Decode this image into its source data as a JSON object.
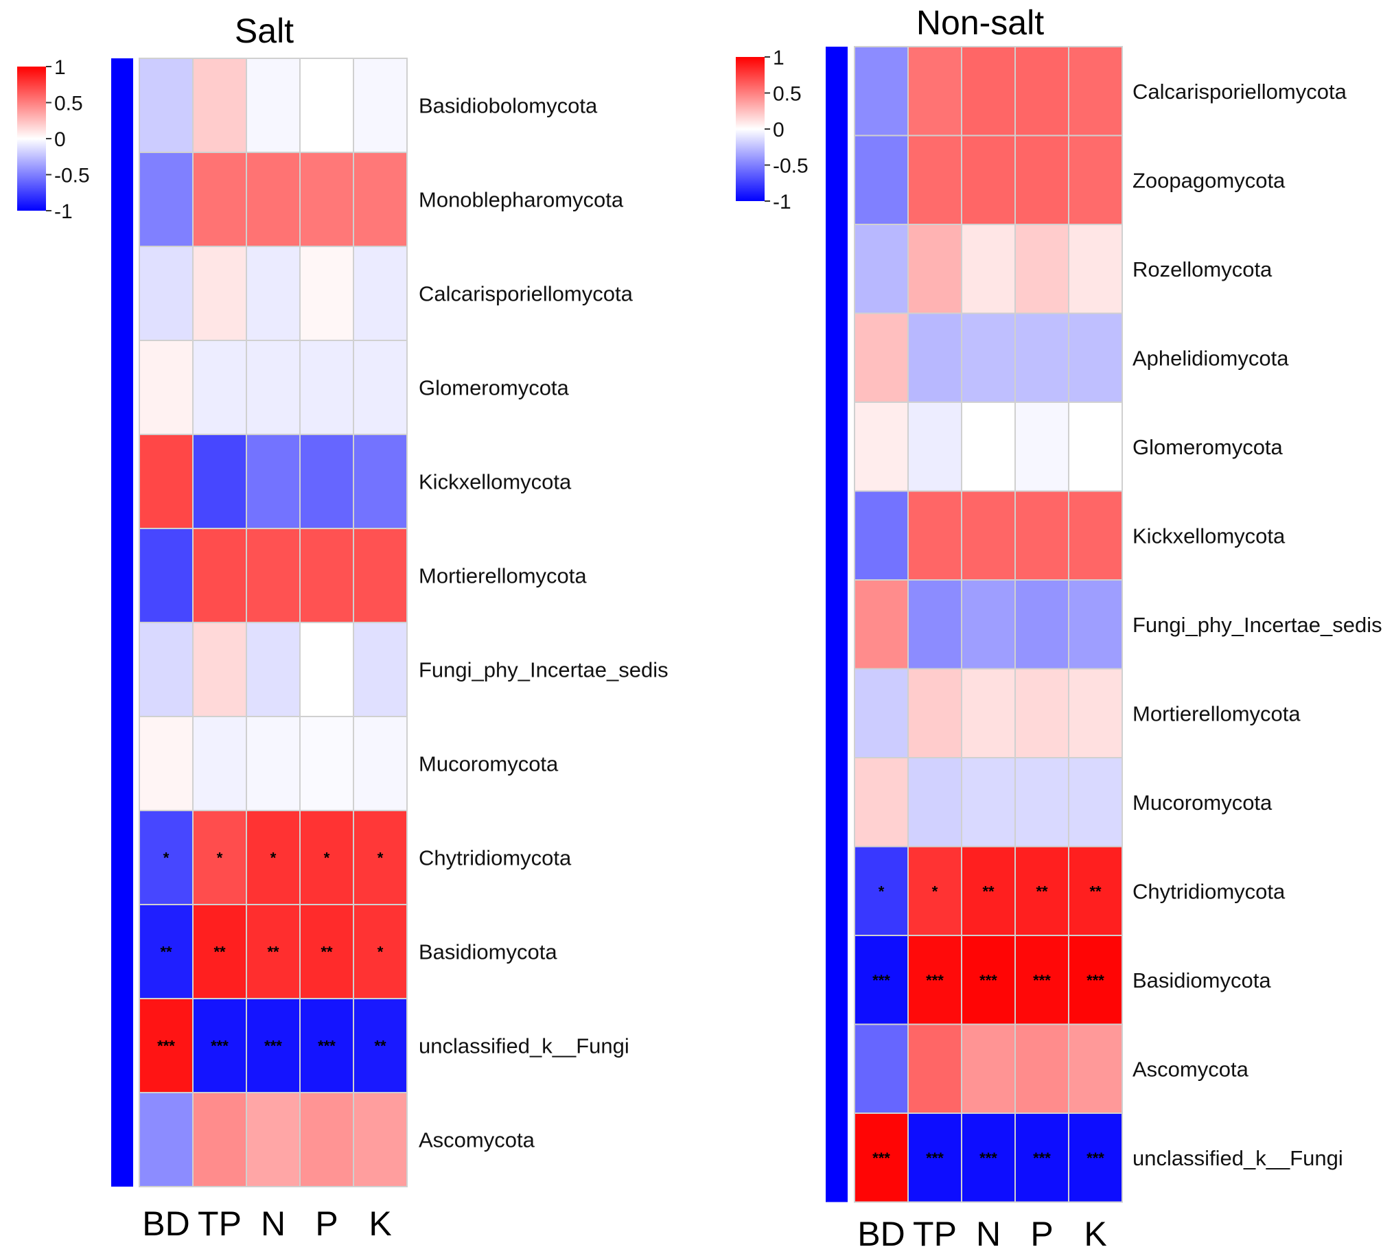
{
  "chart_data": [
    {
      "type": "heatmap",
      "title": "Salt",
      "columns": [
        "BD",
        "TP",
        "N",
        "P",
        "K"
      ],
      "rows": [
        "Basidiobolomycota",
        "Monoblepharomycota",
        "Calcarisporiellomycota",
        "Glomeromycota",
        "Kickxellomycota",
        "Mortierellomycota",
        "Fungi_phy_Incertae_sedis",
        "Mucoromycota",
        "Chytridiomycota",
        "Basidiomycota",
        "unclassified_k__Fungi",
        "Ascomycota"
      ],
      "values": [
        [
          -0.2,
          0.2,
          -0.03,
          0.0,
          -0.03
        ],
        [
          -0.5,
          0.55,
          0.55,
          0.53,
          0.53
        ],
        [
          -0.12,
          0.1,
          -0.08,
          0.03,
          -0.08
        ],
        [
          0.05,
          -0.07,
          -0.07,
          -0.07,
          -0.07
        ],
        [
          0.72,
          -0.72,
          -0.55,
          -0.6,
          -0.55
        ],
        [
          -0.72,
          0.7,
          0.68,
          0.68,
          0.68
        ],
        [
          -0.15,
          0.15,
          -0.12,
          0.0,
          -0.12
        ],
        [
          0.04,
          -0.05,
          -0.03,
          -0.02,
          -0.03
        ],
        [
          -0.72,
          0.7,
          0.8,
          0.8,
          0.78
        ],
        [
          -0.88,
          0.88,
          0.82,
          0.83,
          0.8
        ],
        [
          0.92,
          -0.92,
          -0.92,
          -0.92,
          -0.9
        ],
        [
          -0.45,
          0.45,
          0.35,
          0.42,
          0.38
        ]
      ],
      "significance": [
        [
          "",
          "",
          "",
          "",
          ""
        ],
        [
          "",
          "",
          "",
          "",
          ""
        ],
        [
          "",
          "",
          "",
          "",
          ""
        ],
        [
          "",
          "",
          "",
          "",
          ""
        ],
        [
          "",
          "",
          "",
          "",
          ""
        ],
        [
          "",
          "",
          "",
          "",
          ""
        ],
        [
          "",
          "",
          "",
          "",
          ""
        ],
        [
          "",
          "",
          "",
          "",
          ""
        ],
        [
          "*",
          "*",
          "*",
          "*",
          "*"
        ],
        [
          "**",
          "**",
          "**",
          "**",
          "*"
        ],
        [
          "***",
          "***",
          "***",
          "***",
          "**"
        ],
        [
          "",
          "",
          "",
          "",
          ""
        ]
      ],
      "colorbar": {
        "ticks": [
          "1",
          "0.5",
          "0",
          "-0.5",
          "-1"
        ],
        "range": [
          -1,
          1
        ]
      },
      "colors": {
        "low": "#0000ff",
        "mid": "#ffffff",
        "high": "#ff0000"
      }
    },
    {
      "type": "heatmap",
      "title": "Non-salt",
      "columns": [
        "BD",
        "TP",
        "N",
        "P",
        "K"
      ],
      "rows": [
        "Calcarisporiellomycota",
        "Zoopagomycota",
        "Rozellomycota",
        "Aphelidiomycota",
        "Glomeromycota",
        "Kickxellomycota",
        "Fungi_phy_Incertae_sedis",
        "Mortierellomycota",
        "Mucoromycota",
        "Chytridiomycota",
        "Basidiomycota",
        "Ascomycota",
        "unclassified_k__Fungi"
      ],
      "values": [
        [
          -0.45,
          0.55,
          0.6,
          0.6,
          0.58
        ],
        [
          -0.5,
          0.58,
          0.6,
          0.6,
          0.58
        ],
        [
          -0.28,
          0.3,
          0.1,
          0.2,
          0.1
        ],
        [
          0.25,
          -0.28,
          -0.25,
          -0.25,
          -0.25
        ],
        [
          0.07,
          -0.07,
          0.0,
          -0.03,
          0.0
        ],
        [
          -0.55,
          0.6,
          0.6,
          0.6,
          0.6
        ],
        [
          0.45,
          -0.45,
          -0.38,
          -0.42,
          -0.38
        ],
        [
          -0.2,
          0.2,
          0.12,
          0.15,
          0.12
        ],
        [
          0.18,
          -0.18,
          -0.15,
          -0.15,
          -0.15
        ],
        [
          -0.78,
          0.8,
          0.88,
          0.88,
          0.88
        ],
        [
          -0.95,
          0.96,
          0.98,
          0.97,
          0.98
        ],
        [
          -0.6,
          0.6,
          0.42,
          0.45,
          0.4
        ],
        [
          0.98,
          -0.95,
          -0.95,
          -0.95,
          -0.95
        ]
      ],
      "significance": [
        [
          "",
          "",
          "",
          "",
          ""
        ],
        [
          "",
          "",
          "",
          "",
          ""
        ],
        [
          "",
          "",
          "",
          "",
          ""
        ],
        [
          "",
          "",
          "",
          "",
          ""
        ],
        [
          "",
          "",
          "",
          "",
          ""
        ],
        [
          "",
          "",
          "",
          "",
          ""
        ],
        [
          "",
          "",
          "",
          "",
          ""
        ],
        [
          "",
          "",
          "",
          "",
          ""
        ],
        [
          "",
          "",
          "",
          "",
          ""
        ],
        [
          "*",
          "*",
          "**",
          "**",
          "**"
        ],
        [
          "***",
          "***",
          "***",
          "***",
          "***"
        ],
        [
          "",
          "",
          "",
          "",
          ""
        ],
        [
          "***",
          "***",
          "***",
          "***",
          "***"
        ]
      ],
      "colorbar": {
        "ticks": [
          "1",
          "0.5",
          "0",
          "-0.5",
          "-1"
        ],
        "range": [
          -1,
          1
        ]
      },
      "colors": {
        "low": "#0000ff",
        "mid": "#ffffff",
        "high": "#ff0000"
      }
    }
  ]
}
